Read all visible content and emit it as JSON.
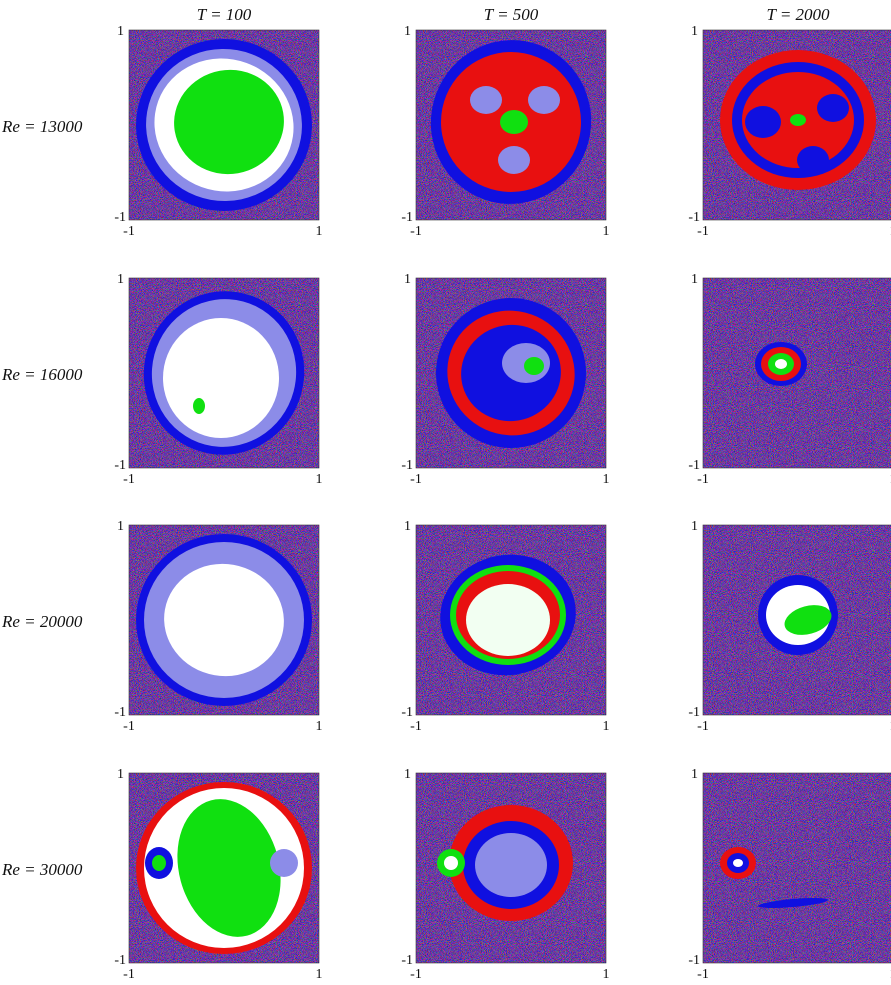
{
  "figure": {
    "columns": [
      "T = 100",
      "T = 500",
      "T = 2000"
    ],
    "rows": [
      "Re = 13000",
      "Re = 16000",
      "Re = 20000",
      "Re = 30000"
    ],
    "axis": {
      "min": "-1",
      "max": "1"
    }
  }
}
